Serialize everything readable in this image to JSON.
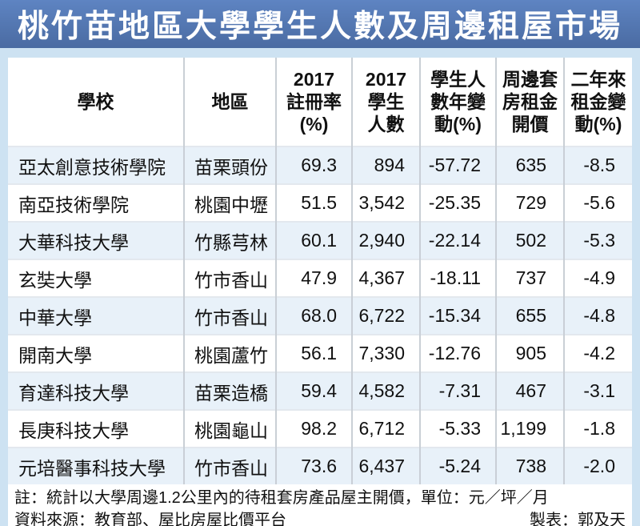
{
  "title": "桃竹苗地區大學學生人數及周邊租屋市場",
  "colors": {
    "title_bar_blue": "#53779f",
    "frame_light_blue": "#cde2f2",
    "row_alt_blue": "#e8f1f9",
    "cell_border_gray": "#c9cfd6",
    "title_text": "#ffffff"
  },
  "table": {
    "headers": {
      "school": "學校",
      "region": "地區",
      "rate": "2017\n註冊率\n(%)",
      "students": "2017\n學生\n人數",
      "change": "學生人\n數年變\n動(%)",
      "rent": "周邊套\n房租金\n開價",
      "rent_change": "二年來\n租金變\n動(%)"
    },
    "rows": [
      {
        "school": "亞太創意技術學院",
        "region": "苗栗頭份",
        "rate": "69.3",
        "students": "894",
        "change": "-57.72",
        "rent": "635",
        "rent_change": "-8.5"
      },
      {
        "school": "南亞技術學院",
        "region": "桃園中壢",
        "rate": "51.5",
        "students": "3,542",
        "change": "-25.35",
        "rent": "729",
        "rent_change": "-5.6"
      },
      {
        "school": "大華科技大學",
        "region": "竹縣芎林",
        "rate": "60.1",
        "students": "2,940",
        "change": "-22.14",
        "rent": "502",
        "rent_change": "-5.3"
      },
      {
        "school": "玄奘大學",
        "region": "竹市香山",
        "rate": "47.9",
        "students": "4,367",
        "change": "-18.11",
        "rent": "737",
        "rent_change": "-4.9"
      },
      {
        "school": "中華大學",
        "region": "竹市香山",
        "rate": "68.0",
        "students": "6,722",
        "change": "-15.34",
        "rent": "655",
        "rent_change": "-4.8"
      },
      {
        "school": "開南大學",
        "region": "桃園蘆竹",
        "rate": "56.1",
        "students": "7,330",
        "change": "-12.76",
        "rent": "905",
        "rent_change": "-4.2"
      },
      {
        "school": "育達科技大學",
        "region": "苗栗造橋",
        "rate": "59.4",
        "students": "4,582",
        "change": "-7.31",
        "rent": "467",
        "rent_change": "-3.1"
      },
      {
        "school": "長庚科技大學",
        "region": "桃園龜山",
        "rate": "98.2",
        "students": "6,712",
        "change": "-5.33",
        "rent": "1,199",
        "rent_change": "-1.8"
      },
      {
        "school": "元培醫事科技大學",
        "region": "竹市香山",
        "rate": "73.6",
        "students": "6,437",
        "change": "-5.24",
        "rent": "738",
        "rent_change": "-2.0"
      }
    ]
  },
  "footer": {
    "note": "註：統計以大學周邊1.2公里內的待租套房產品屋主開價，單位：元／坪／月",
    "source": "資料來源：教育部、屋比房屋比價平台",
    "credit": "製表：郭及天"
  },
  "chart_data": {
    "type": "table",
    "title": "桃竹苗地區大學學生人數及周邊租屋市場",
    "columns": [
      "學校",
      "地區",
      "2017註冊率(%)",
      "2017學生人數",
      "學生人數年變動(%)",
      "周邊套房租金開價",
      "二年來租金變動(%)"
    ],
    "rows": [
      [
        "亞太創意技術學院",
        "苗栗頭份",
        69.3,
        894,
        -57.72,
        635,
        -8.5
      ],
      [
        "南亞技術學院",
        "桃園中壢",
        51.5,
        3542,
        -25.35,
        729,
        -5.6
      ],
      [
        "大華科技大學",
        "竹縣芎林",
        60.1,
        2940,
        -22.14,
        502,
        -5.3
      ],
      [
        "玄奘大學",
        "竹市香山",
        47.9,
        4367,
        -18.11,
        737,
        -4.9
      ],
      [
        "中華大學",
        "竹市香山",
        68.0,
        6722,
        -15.34,
        655,
        -4.8
      ],
      [
        "開南大學",
        "桃園蘆竹",
        56.1,
        7330,
        -12.76,
        905,
        -4.2
      ],
      [
        "育達科技大學",
        "苗栗造橋",
        59.4,
        4582,
        -7.31,
        467,
        -3.1
      ],
      [
        "長庚科技大學",
        "桃園龜山",
        98.2,
        6712,
        -5.33,
        1199,
        -1.8
      ],
      [
        "元培醫事科技大學",
        "竹市香山",
        73.6,
        6437,
        -5.24,
        738,
        -2.0
      ]
    ],
    "units": "租金單位：元／坪／月",
    "notes": "統計以大學周邊1.2公里內的待租套房產品屋主開價"
  }
}
